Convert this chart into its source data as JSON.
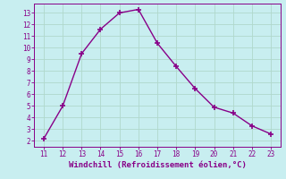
{
  "x": [
    11,
    12,
    13,
    14,
    15,
    16,
    17,
    18,
    19,
    20,
    21,
    22,
    23
  ],
  "y": [
    2.2,
    5.0,
    9.5,
    11.6,
    13.0,
    13.3,
    10.4,
    8.4,
    6.5,
    4.9,
    4.4,
    3.3,
    2.6
  ],
  "xlim": [
    10.5,
    23.5
  ],
  "ylim": [
    1.5,
    13.8
  ],
  "xticks": [
    11,
    12,
    13,
    14,
    15,
    16,
    17,
    18,
    19,
    20,
    21,
    22,
    23
  ],
  "yticks": [
    2,
    3,
    4,
    5,
    6,
    7,
    8,
    9,
    10,
    11,
    12,
    13
  ],
  "xlabel": "Windchill (Refroidissement éolien,°C)",
  "line_color": "#880088",
  "marker": "+",
  "bg_color": "#c8eef0",
  "grid_color": "#b0d8cc",
  "tick_color": "#880088",
  "label_color": "#880088",
  "font_family": "monospace",
  "marker_size": 5,
  "linewidth": 1.0
}
